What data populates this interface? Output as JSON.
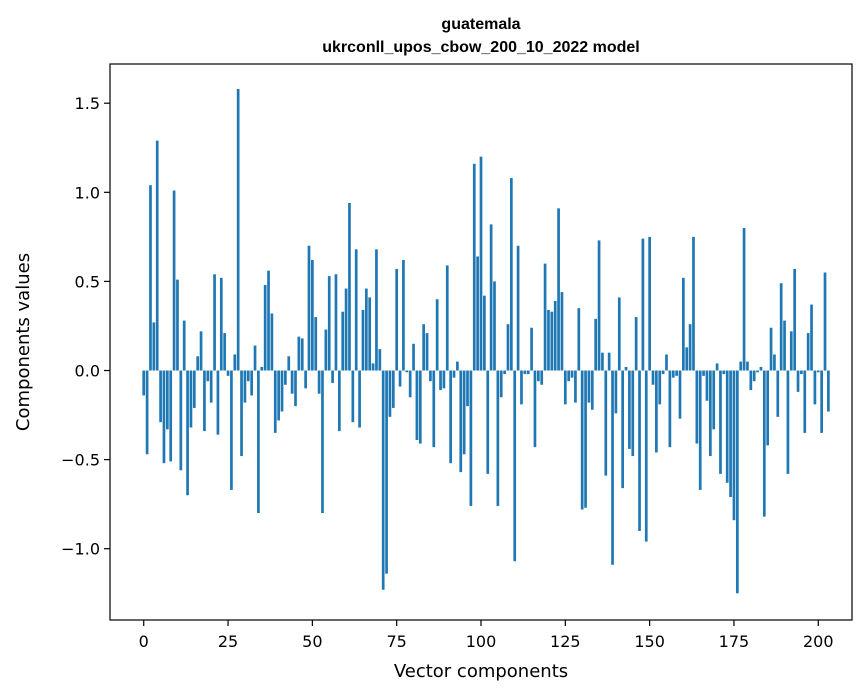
{
  "chart_data": {
    "type": "bar",
    "title": "guatemala",
    "subtitle": "ukrconll_upos_cbow_200_10_2022 model",
    "xlabel": "Vector components",
    "ylabel": "Components values",
    "xlim": [
      -10,
      210
    ],
    "ylim": [
      -1.4,
      1.72
    ],
    "xticks": [
      0,
      25,
      50,
      75,
      100,
      125,
      150,
      175,
      200
    ],
    "yticks": [
      -1.0,
      -0.5,
      0.0,
      0.5,
      1.0,
      1.5
    ],
    "xtick_labels": [
      "0",
      "25",
      "50",
      "75",
      "100",
      "125",
      "150",
      "175",
      "200"
    ],
    "ytick_labels": [
      "−1.0",
      "−0.5",
      "0.0",
      "0.5",
      "1.0",
      "1.5"
    ],
    "bar_color": "#1f77b4",
    "grid": false,
    "series": [
      {
        "values": [
          -0.14,
          -0.47,
          1.04,
          0.27,
          1.29,
          -0.29,
          -0.52,
          -0.33,
          -0.51,
          1.01,
          0.51,
          -0.56,
          0.28,
          -0.7,
          -0.32,
          -0.21,
          0.08,
          0.22,
          -0.34,
          -0.06,
          -0.18,
          0.54,
          -0.36,
          0.52,
          0.21,
          -0.03,
          -0.67,
          0.09,
          1.58,
          -0.48,
          -0.18,
          -0.06,
          -0.14,
          0.14,
          -0.8,
          0.02,
          0.48,
          0.56,
          0.32,
          -0.35,
          -0.28,
          -0.23,
          -0.08,
          0.08,
          -0.13,
          -0.2,
          0.19,
          0.18,
          -0.1,
          0.7,
          0.62,
          0.3,
          -0.13,
          -0.8,
          0.23,
          0.53,
          -0.07,
          0.54,
          -0.34,
          0.33,
          0.46,
          0.94,
          -0.29,
          0.68,
          -0.32,
          0.34,
          0.46,
          0.41,
          0.04,
          0.68,
          0.12,
          -1.23,
          -1.14,
          -0.26,
          -0.21,
          0.57,
          -0.09,
          0.62,
          -0.01,
          -0.15,
          0.15,
          -0.39,
          -0.41,
          0.26,
          0.21,
          -0.06,
          -0.43,
          0.4,
          -0.11,
          -0.1,
          0.59,
          -0.52,
          -0.04,
          0.05,
          -0.57,
          -0.47,
          -0.2,
          -0.76,
          1.16,
          0.64,
          1.2,
          0.42,
          -0.58,
          0.82,
          0.5,
          -0.76,
          -0.15,
          -0.02,
          0.26,
          1.08,
          -1.07,
          0.7,
          -0.19,
          -0.02,
          -0.02,
          0.24,
          -0.43,
          -0.06,
          -0.08,
          0.6,
          0.34,
          0.33,
          0.39,
          0.91,
          0.44,
          -0.19,
          -0.06,
          -0.04,
          -0.18,
          0.35,
          -0.78,
          -0.77,
          -0.18,
          -0.22,
          0.29,
          0.73,
          0.1,
          -0.59,
          0.1,
          -1.09,
          -0.24,
          0.41,
          -0.66,
          0.02,
          -0.44,
          -0.48,
          0.3,
          -0.9,
          0.74,
          -0.96,
          0.75,
          -0.08,
          -0.46,
          -0.19,
          -0.02,
          0.09,
          -0.43,
          -0.04,
          -0.03,
          -0.27,
          0.52,
          0.13,
          0.26,
          0.75,
          -0.41,
          -0.67,
          -0.03,
          -0.17,
          -0.48,
          -0.33,
          0.04,
          -0.58,
          -0.02,
          -0.63,
          -0.71,
          -0.84,
          -1.25,
          0.05,
          0.8,
          0.05,
          -0.11,
          -0.06,
          -0.01,
          0.02,
          -0.82,
          -0.42,
          0.24,
          0.09,
          -0.26,
          0.49,
          0.28,
          -0.58,
          0.22,
          0.57,
          -0.12,
          -0.02,
          -0.35,
          0.21,
          0.37,
          -0.19,
          -0.01,
          -0.35,
          0.55,
          -0.23
        ]
      }
    ]
  }
}
